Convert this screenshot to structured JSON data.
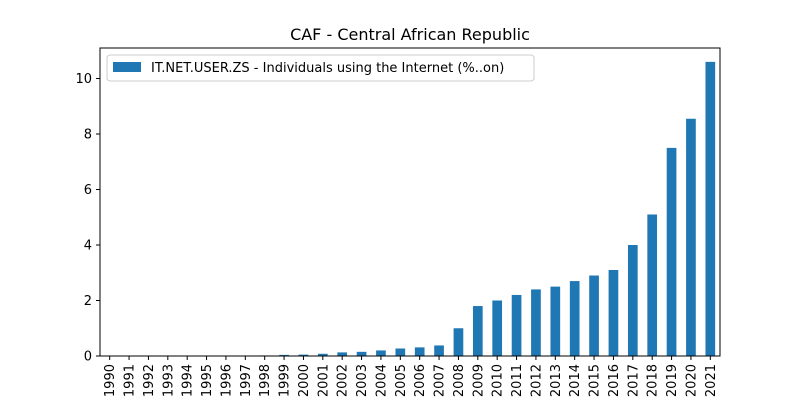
{
  "chart_data": {
    "type": "bar",
    "title": "CAF - Central African Republic",
    "xlabel": "",
    "ylabel": "",
    "categories": [
      "1990",
      "1991",
      "1992",
      "1993",
      "1994",
      "1995",
      "1996",
      "1997",
      "1998",
      "1999",
      "2000",
      "2001",
      "2002",
      "2003",
      "2004",
      "2005",
      "2006",
      "2007",
      "2008",
      "2009",
      "2010",
      "2011",
      "2012",
      "2013",
      "2014",
      "2015",
      "2016",
      "2017",
      "2018",
      "2019",
      "2020",
      "2021"
    ],
    "series": [
      {
        "name": "IT.NET.USER.ZS - Individuals using the Internet (%..on)",
        "color": "#1f77b4",
        "values": [
          0,
          0,
          0,
          0,
          0,
          0,
          0.002,
          0.01,
          0.02,
          0.04,
          0.05,
          0.08,
          0.13,
          0.15,
          0.2,
          0.27,
          0.31,
          0.38,
          1.0,
          1.8,
          2.0,
          2.2,
          2.4,
          2.5,
          2.7,
          2.9,
          3.1,
          4.0,
          5.1,
          7.5,
          8.55,
          10.6
        ]
      }
    ],
    "yticks": [
      0,
      2,
      4,
      6,
      8,
      10
    ],
    "ylim": [
      0,
      11.1
    ],
    "legend_position": "upper-left",
    "grid": false
  }
}
